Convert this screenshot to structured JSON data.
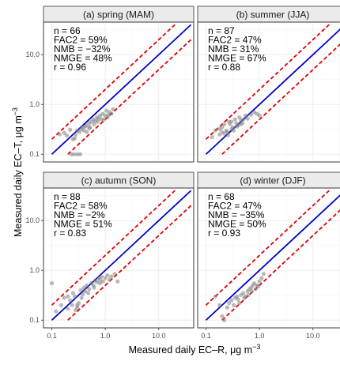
{
  "chart_data": {
    "type": "scatter",
    "xlabel": "Measured daily EC–R, μg m",
    "xlabel_sup": "−3",
    "ylabel": "Measured daily EC–T, μg m",
    "ylabel_sup": "−3",
    "x_scale": "log",
    "y_scale": "log",
    "xlim": [
      0.07,
      45
    ],
    "ylim": [
      0.07,
      45
    ],
    "x_ticks": [
      0.1,
      1.0,
      10.0
    ],
    "x_tick_labels": [
      "0.1",
      "1.0",
      "10.0"
    ],
    "y_ticks": [
      0.1,
      1.0,
      10.0
    ],
    "y_tick_labels": [
      "0.1",
      "1.0",
      "10.0"
    ],
    "grid": true,
    "colors": {
      "points": "#7f7f7f",
      "one_to_one": "#0000cc",
      "factor2": "#dd0000"
    },
    "panels": [
      {
        "title": "(a) spring (MAM)",
        "stats": [
          "n = 66",
          "FAC2 = 59%",
          "NMB = −32%",
          "NMGE = 48%",
          "r = 0.96"
        ],
        "points": [
          [
            0.14,
            0.25
          ],
          [
            0.17,
            0.27
          ],
          [
            0.19,
            0.24
          ],
          [
            0.22,
            0.31
          ],
          [
            0.25,
            0.2
          ],
          [
            0.27,
            0.21
          ],
          [
            0.28,
            0.25
          ],
          [
            0.3,
            0.3
          ],
          [
            0.33,
            0.28
          ],
          [
            0.36,
            0.32
          ],
          [
            0.38,
            0.35
          ],
          [
            0.4,
            0.3
          ],
          [
            0.42,
            0.36
          ],
          [
            0.45,
            0.38
          ],
          [
            0.5,
            0.42
          ],
          [
            0.52,
            0.35
          ],
          [
            0.55,
            0.45
          ],
          [
            0.6,
            0.5
          ],
          [
            0.65,
            0.47
          ],
          [
            0.7,
            0.55
          ],
          [
            0.75,
            0.52
          ],
          [
            0.8,
            0.6
          ],
          [
            0.85,
            0.5
          ],
          [
            0.9,
            0.65
          ],
          [
            1.0,
            0.6
          ],
          [
            1.05,
            0.75
          ],
          [
            1.1,
            0.55
          ],
          [
            1.2,
            0.7
          ],
          [
            1.3,
            0.65
          ],
          [
            1.4,
            0.8
          ],
          [
            0.23,
            0.1
          ],
          [
            0.26,
            0.1
          ],
          [
            0.3,
            0.1
          ],
          [
            0.34,
            0.1
          ],
          [
            0.5,
            0.33
          ],
          [
            0.45,
            0.28
          ],
          [
            0.62,
            0.4
          ],
          [
            0.72,
            0.45
          ],
          [
            0.95,
            0.5
          ],
          [
            1.15,
            0.62
          ]
        ]
      },
      {
        "title": "(b) summer (JJA)",
        "stats": [
          "n = 87",
          "FAC2 = 47%",
          "NMB = 31%",
          "NMGE = 67%",
          "r = 0.88"
        ],
        "points": [
          [
            0.13,
            0.22
          ],
          [
            0.15,
            0.3
          ],
          [
            0.18,
            0.25
          ],
          [
            0.2,
            0.35
          ],
          [
            0.22,
            0.4
          ],
          [
            0.24,
            0.3
          ],
          [
            0.25,
            0.28
          ],
          [
            0.28,
            0.4
          ],
          [
            0.3,
            0.45
          ],
          [
            0.32,
            0.35
          ],
          [
            0.35,
            0.5
          ],
          [
            0.37,
            0.42
          ],
          [
            0.4,
            0.38
          ],
          [
            0.42,
            0.55
          ],
          [
            0.45,
            0.48
          ],
          [
            0.5,
            0.5
          ],
          [
            0.55,
            0.6
          ],
          [
            0.6,
            0.52
          ],
          [
            0.7,
            0.62
          ],
          [
            0.8,
            0.7
          ],
          [
            0.9,
            0.65
          ],
          [
            1.0,
            0.6
          ],
          [
            0.26,
            0.24
          ],
          [
            0.22,
            0.26
          ],
          [
            0.3,
            0.32
          ],
          [
            0.33,
            0.3
          ],
          [
            0.38,
            0.36
          ],
          [
            0.44,
            0.4
          ],
          [
            0.48,
            0.42
          ],
          [
            0.27,
            0.45
          ],
          [
            0.2,
            0.28
          ],
          [
            0.18,
            0.32
          ]
        ]
      },
      {
        "title": "(c) autumn (SON)",
        "stats": [
          "n = 88",
          "FAC2 = 58%",
          "NMB = −2%",
          "NMGE = 51%",
          "r = 0.83"
        ],
        "points": [
          [
            0.1,
            0.55
          ],
          [
            0.12,
            0.15
          ],
          [
            0.15,
            0.2
          ],
          [
            0.17,
            0.28
          ],
          [
            0.2,
            0.3
          ],
          [
            0.22,
            0.25
          ],
          [
            0.25,
            0.35
          ],
          [
            0.27,
            0.3
          ],
          [
            0.3,
            0.18
          ],
          [
            0.32,
            0.22
          ],
          [
            0.35,
            0.4
          ],
          [
            0.38,
            0.33
          ],
          [
            0.4,
            0.45
          ],
          [
            0.42,
            0.38
          ],
          [
            0.45,
            0.5
          ],
          [
            0.5,
            0.42
          ],
          [
            0.55,
            0.55
          ],
          [
            0.6,
            0.5
          ],
          [
            0.65,
            0.62
          ],
          [
            0.7,
            0.58
          ],
          [
            0.75,
            0.7
          ],
          [
            0.8,
            0.65
          ],
          [
            0.85,
            0.75
          ],
          [
            0.9,
            0.6
          ],
          [
            1.0,
            0.7
          ],
          [
            1.1,
            0.8
          ],
          [
            1.2,
            0.65
          ],
          [
            1.3,
            0.75
          ],
          [
            1.5,
            0.85
          ],
          [
            1.7,
            0.6
          ],
          [
            0.28,
            0.16
          ],
          [
            0.3,
            0.2
          ],
          [
            0.36,
            0.28
          ],
          [
            0.48,
            0.35
          ],
          [
            0.62,
            0.45
          ],
          [
            0.8,
            0.55
          ],
          [
            0.24,
            0.2
          ],
          [
            0.2,
            0.17
          ]
        ]
      },
      {
        "title": "(d) winter (DJF)",
        "stats": [
          "n = 68",
          "FAC2 = 47%",
          "NMB = −35%",
          "NMGE = 50%",
          "r = 0.93"
        ],
        "points": [
          [
            0.15,
            0.3
          ],
          [
            0.18,
            0.2
          ],
          [
            0.2,
            0.12
          ],
          [
            0.22,
            0.1
          ],
          [
            0.25,
            0.18
          ],
          [
            0.27,
            0.22
          ],
          [
            0.3,
            0.25
          ],
          [
            0.33,
            0.2
          ],
          [
            0.35,
            0.28
          ],
          [
            0.38,
            0.3
          ],
          [
            0.4,
            0.26
          ],
          [
            0.45,
            0.32
          ],
          [
            0.5,
            0.35
          ],
          [
            0.55,
            0.3
          ],
          [
            0.6,
            0.38
          ],
          [
            0.65,
            0.42
          ],
          [
            0.7,
            0.45
          ],
          [
            0.75,
            0.5
          ],
          [
            0.8,
            0.55
          ],
          [
            0.9,
            0.5
          ],
          [
            1.0,
            0.6
          ],
          [
            1.1,
            0.7
          ],
          [
            1.2,
            0.85
          ],
          [
            0.42,
            0.22
          ],
          [
            0.52,
            0.28
          ],
          [
            0.62,
            0.32
          ],
          [
            0.72,
            0.38
          ],
          [
            0.85,
            0.42
          ],
          [
            0.95,
            0.48
          ]
        ]
      }
    ]
  }
}
